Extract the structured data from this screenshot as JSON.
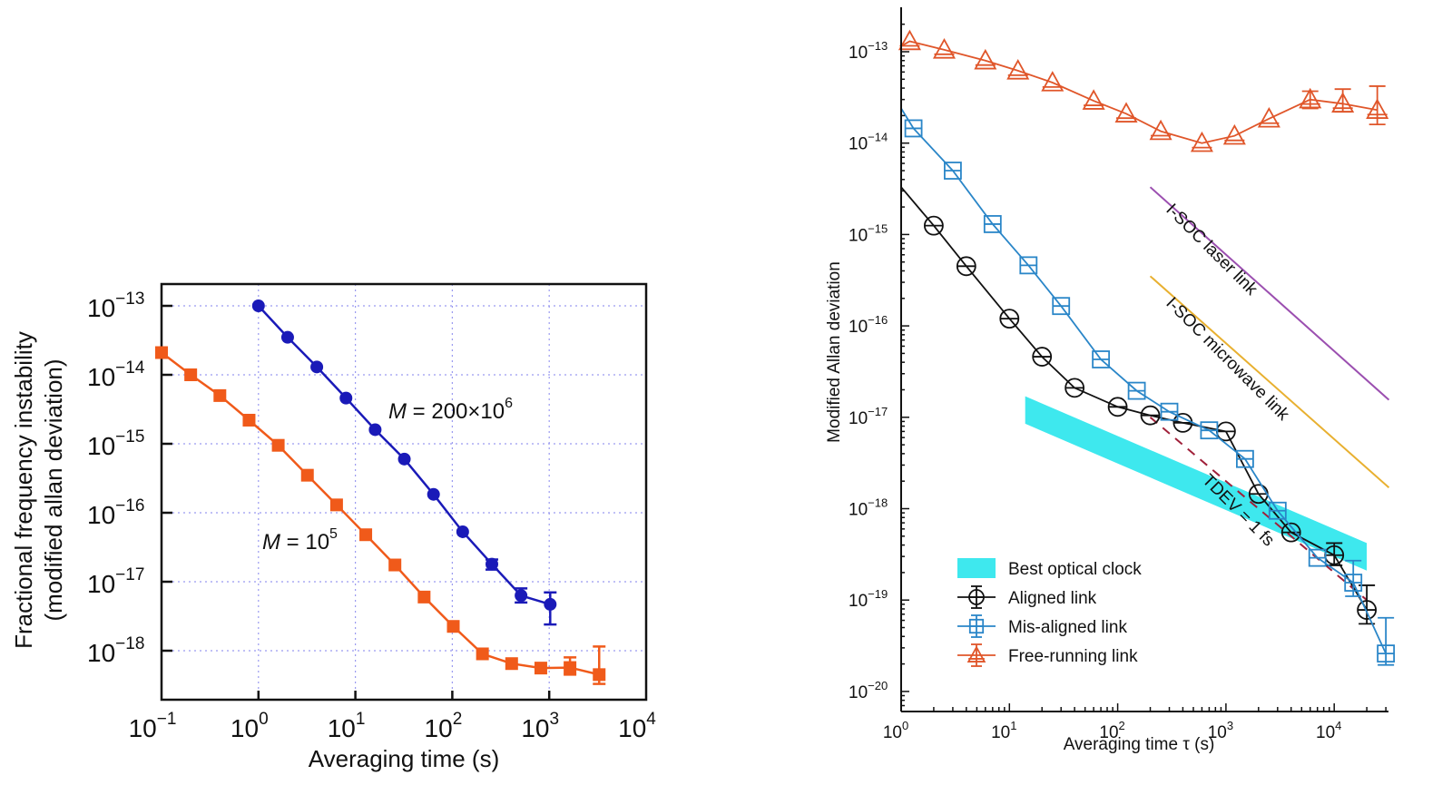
{
  "chart_data": [
    {
      "type": "line",
      "title": "",
      "xlabel": "Averaging time (s)",
      "ylabel_line1": "Fractional frequency instability",
      "ylabel_line2": "(modified allan deviation)",
      "xscale": "log",
      "yscale": "log",
      "xlim_exp": [
        -1,
        4
      ],
      "ylim_exp": [
        -18.5,
        -12.7
      ],
      "grid": true,
      "x_ticks": [
        {
          "base": "10",
          "exp": "−1",
          "e": -1
        },
        {
          "base": "10",
          "exp": "0",
          "e": 0
        },
        {
          "base": "10",
          "exp": "1",
          "e": 1
        },
        {
          "base": "10",
          "exp": "2",
          "e": 2
        },
        {
          "base": "10",
          "exp": "3",
          "e": 3
        },
        {
          "base": "10",
          "exp": "4",
          "e": 4
        }
      ],
      "y_ticks": [
        {
          "base": "10",
          "exp": "−13",
          "e": -13
        },
        {
          "base": "10",
          "exp": "−14",
          "e": -14
        },
        {
          "base": "10",
          "exp": "−15",
          "e": -15
        },
        {
          "base": "10",
          "exp": "−16",
          "e": -16
        },
        {
          "base": "10",
          "exp": "−17",
          "e": -17
        },
        {
          "base": "10",
          "exp": "−18",
          "e": -18
        }
      ],
      "series": [
        {
          "name": "M = 200×10^6",
          "label_prefix": "M",
          "label_rest": " = 200×10",
          "label_sup": "6",
          "color": "#1a1ab8",
          "marker": "circle",
          "x": [
            1,
            2,
            4,
            8,
            16,
            32,
            64,
            128,
            256,
            512,
            1024
          ],
          "y": [
            1e-13,
            3.5e-14,
            1.3e-14,
            4.6e-15,
            1.6e-15,
            6e-16,
            1.85e-16,
            5.3e-17,
            1.8e-17,
            6.3e-18,
            4.7e-18
          ],
          "yerr_low": [
            null,
            null,
            null,
            null,
            null,
            null,
            null,
            null,
            1.5e-17,
            5e-18,
            2.4e-18
          ],
          "yerr_high": [
            null,
            null,
            null,
            null,
            null,
            null,
            null,
            null,
            2.1e-17,
            8e-18,
            7e-18
          ]
        },
        {
          "name": "M = 10^5",
          "label_prefix": "M",
          "label_rest": " = 10",
          "label_sup": "5",
          "color": "#f05a1a",
          "marker": "square",
          "x": [
            0.1,
            0.2,
            0.4,
            0.8,
            1.6,
            3.2,
            6.4,
            12.8,
            25.6,
            51.2,
            102.4,
            204.8,
            409.6,
            819.2,
            1638.4,
            3276.8
          ],
          "y": [
            2.1e-14,
            1e-14,
            5e-15,
            2.2e-15,
            9.5e-16,
            3.5e-16,
            1.3e-16,
            4.8e-17,
            1.75e-17,
            6e-18,
            2.25e-18,
            9e-19,
            6.5e-19,
            5.6e-19,
            5.7e-19,
            4.5e-19
          ],
          "yerr_low": [
            null,
            null,
            null,
            null,
            null,
            null,
            null,
            null,
            null,
            null,
            null,
            null,
            null,
            null,
            4.5e-19,
            3.3e-19
          ],
          "yerr_high": [
            null,
            null,
            null,
            null,
            null,
            null,
            null,
            null,
            null,
            null,
            null,
            null,
            null,
            null,
            8e-19,
            1.15e-18
          ]
        }
      ]
    },
    {
      "type": "line",
      "title": "",
      "xlabel": "Averaging time τ (s)",
      "ylabel": "Modified Allan deviation",
      "xscale": "log",
      "yscale": "log",
      "xlim_exp": [
        0,
        4.55
      ],
      "ylim_exp": [
        -20.2,
        -12.5
      ],
      "grid": false,
      "x_ticks": [
        {
          "base": "10",
          "exp": "0",
          "e": 0
        },
        {
          "base": "10",
          "exp": "1",
          "e": 1
        },
        {
          "base": "10",
          "exp": "2",
          "e": 2
        },
        {
          "base": "10",
          "exp": "3",
          "e": 3
        },
        {
          "base": "10",
          "exp": "4",
          "e": 4
        }
      ],
      "y_ticks": [
        {
          "base": "10",
          "exp": "−13",
          "e": -13
        },
        {
          "base": "10",
          "exp": "−14",
          "e": -14
        },
        {
          "base": "10",
          "exp": "−15",
          "e": -15
        },
        {
          "base": "10",
          "exp": "−16",
          "e": -16
        },
        {
          "base": "10",
          "exp": "−17",
          "e": -17
        },
        {
          "base": "10",
          "exp": "−18",
          "e": -18
        },
        {
          "base": "10",
          "exp": "−19",
          "e": -19
        },
        {
          "base": "10",
          "exp": "−20",
          "e": -20
        }
      ],
      "band": {
        "name": "Best optical clock",
        "color": "#3ee8ee",
        "x": [
          14,
          20000
        ],
        "upper": [
          1.7e-17,
          4.2e-19
        ],
        "lower": [
          8.5e-18,
          2.1e-19
        ]
      },
      "reference_lines": [
        {
          "name": "I-SOC laser link",
          "color": "#9b4fb0",
          "x": [
            200,
            32000
          ],
          "y": [
            3.3e-15,
            1.55e-17
          ]
        },
        {
          "name": "I-SOC microwave link",
          "color": "#e8b030",
          "x": [
            200,
            32000
          ],
          "y": [
            3.5e-16,
            1.7e-18
          ]
        },
        {
          "name": "TDEV = 1 fs",
          "color": "#a0203a",
          "dashed": true,
          "x": [
            200,
            20000
          ],
          "y": [
            1e-17,
            1e-19
          ]
        }
      ],
      "series": [
        {
          "name": "Aligned link",
          "color": "#111111",
          "marker": "circle",
          "lead_in": {
            "x": 1,
            "y": 3.3e-15
          },
          "x": [
            2,
            4,
            10,
            20,
            40,
            100,
            200,
            400,
            1000,
            2000,
            4000,
            10000,
            20000
          ],
          "y": [
            1.25e-15,
            4.5e-16,
            1.2e-16,
            4.6e-17,
            2.1e-17,
            1.3e-17,
            1.05e-17,
            8.7e-18,
            7e-18,
            1.45e-18,
            5.5e-19,
            3.1e-19,
            7.8e-20
          ],
          "yerr_low": [
            null,
            null,
            null,
            null,
            null,
            null,
            null,
            null,
            null,
            null,
            null,
            2.4e-19,
            5.5e-20
          ],
          "yerr_high": [
            null,
            null,
            null,
            null,
            null,
            null,
            null,
            null,
            null,
            null,
            null,
            4.2e-19,
            1.45e-19
          ]
        },
        {
          "name": "Mis-aligned link",
          "color": "#2a86c8",
          "marker": "square",
          "lead_in": {
            "x": 1,
            "y": 2.4e-14
          },
          "x": [
            1.3,
            3,
            7,
            15,
            30,
            70,
            150,
            300,
            700,
            1500,
            3000,
            7000,
            15000,
            30000
          ],
          "y": [
            1.45e-14,
            5e-15,
            1.3e-15,
            4.6e-16,
            1.65e-16,
            4.3e-17,
            1.95e-17,
            1.15e-17,
            7.2e-18,
            3.5e-18,
            9.5e-19,
            2.9e-19,
            1.55e-19,
            2.6e-20
          ],
          "yerr_low": [
            null,
            null,
            null,
            null,
            null,
            null,
            null,
            null,
            null,
            null,
            null,
            null,
            1.1e-19,
            1.95e-20
          ],
          "yerr_high": [
            null,
            null,
            null,
            null,
            null,
            null,
            null,
            null,
            null,
            null,
            null,
            null,
            2.7e-19,
            6.4e-20
          ]
        },
        {
          "name": "Free-running link",
          "color": "#e0562a",
          "marker": "triangle",
          "lead_in": {
            "x": 1,
            "y": 1.15e-13
          },
          "x": [
            1.2,
            2.5,
            6,
            12,
            25,
            60,
            120,
            250,
            600,
            1200,
            2500,
            6000,
            12000,
            25000
          ],
          "y": [
            1.3e-13,
            1.05e-13,
            8e-14,
            6.2e-14,
            4.6e-14,
            2.9e-14,
            2.1e-14,
            1.35e-14,
            1e-14,
            1.2e-14,
            1.85e-14,
            3e-14,
            2.7e-14,
            2.3e-14
          ],
          "yerr_low": [
            null,
            null,
            null,
            null,
            null,
            null,
            null,
            null,
            null,
            null,
            null,
            2.4e-14,
            2.2e-14,
            1.6e-14
          ],
          "yerr_high": [
            null,
            null,
            null,
            null,
            null,
            null,
            null,
            null,
            null,
            null,
            null,
            3.7e-14,
            3.9e-14,
            4.2e-14
          ]
        }
      ],
      "legend": {
        "position": "bottom-left",
        "items": [
          {
            "label": "Best optical clock",
            "kind": "band"
          },
          {
            "label": "Aligned link",
            "kind": "series",
            "index": 0
          },
          {
            "label": "Mis-aligned link",
            "kind": "series",
            "index": 1
          },
          {
            "label": "Free-running link",
            "kind": "series",
            "index": 2
          }
        ]
      }
    }
  ]
}
